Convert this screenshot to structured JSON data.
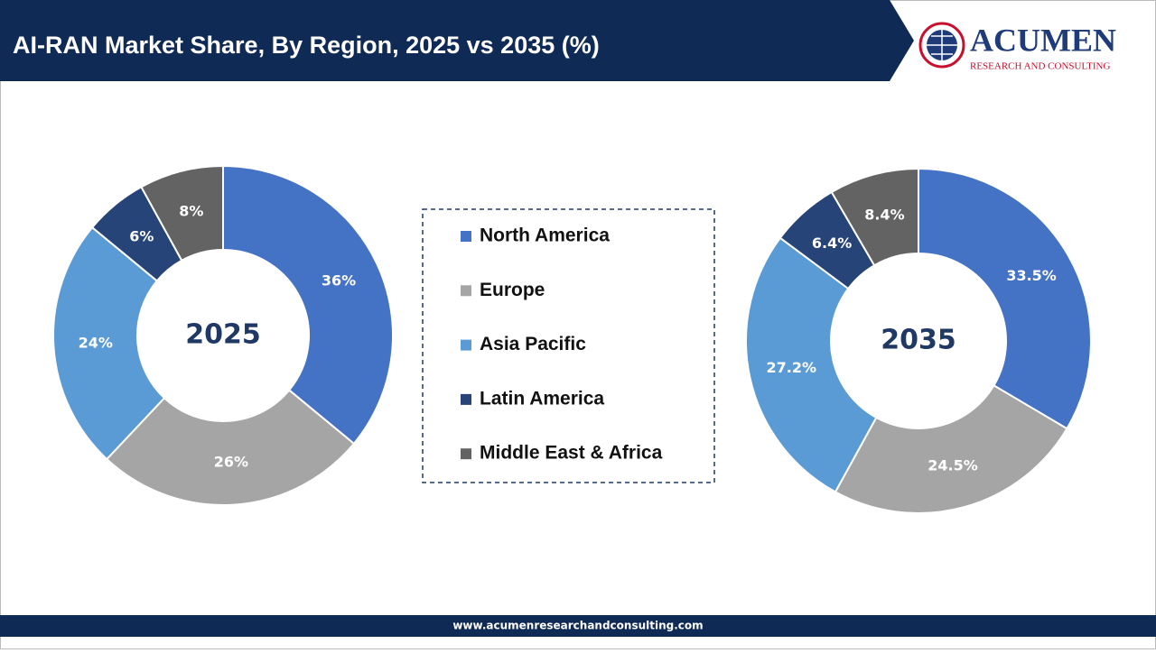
{
  "header": {
    "title": "AI-RAN Market Share, By Region, 2025 vs 2035 (%)",
    "logo_name": "ACUMEN",
    "logo_tagline": "RESEARCH AND CONSULTING"
  },
  "chart_data": {
    "type": "donut",
    "categories": [
      "North America",
      "Europe",
      "Asia Pacific",
      "Latin America",
      "Middle East & Africa"
    ],
    "colors": [
      "#4472c4",
      "#a5a5a5",
      "#5b9bd5",
      "#264478",
      "#636363"
    ],
    "series": [
      {
        "name": "2025",
        "values": [
          36,
          26,
          24,
          6,
          8
        ],
        "value_labels": [
          "36%",
          "26%",
          "24%",
          "6%",
          "8%"
        ]
      },
      {
        "name": "2035",
        "values": [
          33.5,
          24.5,
          27.2,
          6.4,
          8.4
        ],
        "value_labels": [
          "33.5%",
          "24.5%",
          "27.2%",
          "6.4%",
          "8.4%"
        ]
      }
    ]
  },
  "footer": {
    "url": "www.acumenresearchandconsulting.com"
  }
}
